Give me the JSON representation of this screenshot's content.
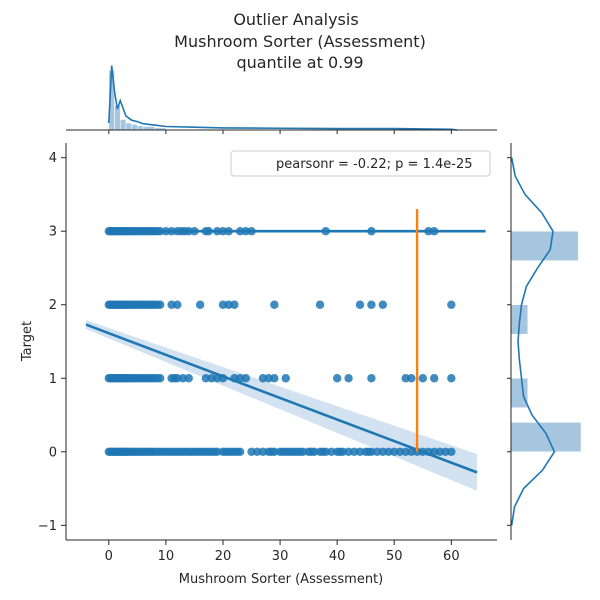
{
  "chart_data": {
    "type": "scatter",
    "title_lines": [
      "Outlier Analysis",
      "Mushroom Sorter (Assessment)",
      "quantile at 0.99"
    ],
    "xlabel": "Mushroom Sorter (Assessment)",
    "ylabel": "Target",
    "xlim": [
      -7.5,
      68
    ],
    "ylim": [
      -1.2,
      4.2
    ],
    "x_ticks": [
      0,
      10,
      20,
      30,
      40,
      50,
      60
    ],
    "y_ticks": [
      -1,
      0,
      1,
      2,
      3,
      4
    ],
    "legend": {
      "text": "pearsonr = -0.22; p = 1.4e-25",
      "position": "top-right"
    },
    "colors": {
      "points": "#1f77b4",
      "quantile_line": "#ff7f0e",
      "ci_band": "#aecbe6",
      "hist_bar": "#a6c6e0"
    },
    "series": [
      {
        "target": 3,
        "x": [
          0,
          0.3,
          0.6,
          0.9,
          1.2,
          1.5,
          1.8,
          2.1,
          2.4,
          2.7,
          3,
          3.3,
          3.6,
          4,
          4.4,
          4.8,
          5.2,
          5.6,
          6,
          6.4,
          6.8,
          7.2,
          7.6,
          8,
          8.5,
          9,
          10,
          11,
          12,
          12.7,
          13.3,
          14,
          15,
          17,
          17.5,
          19,
          20,
          21,
          23,
          24,
          25,
          38,
          46,
          56,
          57
        ]
      },
      {
        "target": 2,
        "x": [
          0,
          0.3,
          0.6,
          0.9,
          1.2,
          1.5,
          1.8,
          2.1,
          2.4,
          2.7,
          3,
          3.3,
          3.6,
          4,
          4.4,
          4.8,
          5.2,
          5.6,
          6,
          6.4,
          6.8,
          7.2,
          7.6,
          8,
          8.5,
          9,
          11,
          12,
          16,
          20,
          21,
          22,
          29,
          37,
          44,
          46,
          48,
          60
        ]
      },
      {
        "target": 1,
        "x": [
          0,
          0.3,
          0.6,
          0.9,
          1.2,
          1.5,
          1.8,
          2.1,
          2.4,
          2.7,
          3,
          3.3,
          3.6,
          4,
          4.4,
          4.8,
          5.2,
          5.6,
          6,
          6.4,
          6.8,
          7.2,
          7.6,
          8,
          8.5,
          9,
          11,
          11.5,
          12,
          13,
          14,
          17,
          18,
          19,
          20,
          22,
          23,
          24,
          27,
          28,
          29,
          31,
          40,
          42,
          46,
          52,
          53,
          55,
          57,
          60
        ]
      },
      {
        "target": 0,
        "x": [
          0,
          0.3,
          0.6,
          0.9,
          1.2,
          1.5,
          1.8,
          2.1,
          2.4,
          2.7,
          3,
          3.3,
          3.6,
          4,
          4.4,
          4.8,
          5.2,
          5.6,
          6,
          6.4,
          6.8,
          7.2,
          7.6,
          8,
          8.5,
          9,
          9.5,
          10,
          10.5,
          11,
          11.5,
          12,
          12.5,
          13,
          13.5,
          14,
          14.5,
          15,
          15.5,
          16,
          16.5,
          17,
          17.5,
          18,
          18.5,
          19,
          20,
          20.5,
          21,
          21.5,
          22,
          22.5,
          23,
          25,
          26,
          27,
          28,
          28.5,
          29,
          30,
          30.5,
          31,
          31.5,
          32,
          32.5,
          33,
          33.5,
          34,
          35,
          35.5,
          36,
          37,
          37.5,
          38,
          39,
          40,
          40.5,
          41,
          42,
          43,
          44,
          45,
          45.5,
          46,
          47,
          48,
          49,
          50,
          51,
          52,
          53,
          54,
          55,
          56,
          57,
          58,
          59,
          60
        ]
      }
    ],
    "regression_lines": [
      {
        "target": 3,
        "x": [
          0,
          66
        ],
        "y": [
          3.0,
          3.0
        ]
      },
      {
        "target": "overall",
        "x": [
          -4,
          64.5
        ],
        "y": [
          1.73,
          -0.28
        ],
        "ci_x": [
          -4,
          64.5
        ],
        "ci_low": [
          1.67,
          -0.53
        ],
        "ci_high": [
          1.79,
          -0.03
        ]
      }
    ],
    "quantile_line": {
      "x": 54,
      "y": [
        0,
        3.3
      ]
    },
    "marginal_x": {
      "x_range": [
        -7.5,
        68
      ],
      "kde_x": [
        0,
        0.5,
        1,
        1.5,
        2,
        3,
        4,
        5,
        6,
        8,
        10,
        15,
        20,
        30,
        40,
        50,
        60,
        61
      ],
      "kde_y": [
        0.1,
        0.92,
        0.55,
        0.3,
        0.42,
        0.2,
        0.14,
        0.12,
        0.09,
        0.07,
        0.05,
        0.04,
        0.03,
        0.025,
        0.02,
        0.02,
        0.01,
        0
      ],
      "hist_bins": [
        0,
        1,
        2,
        3,
        4,
        5,
        6,
        8,
        10
      ],
      "hist_heights": [
        0.85,
        0.35,
        0.15,
        0.1,
        0.08,
        0.06,
        0.05,
        0.03,
        0.02
      ]
    },
    "marginal_y": {
      "bars": [
        {
          "y_low": 2.6,
          "y_high": 3.0,
          "width": 0.96
        },
        {
          "y_low": 1.6,
          "y_high": 2.0,
          "width": 0.24
        },
        {
          "y_low": 0.6,
          "y_high": 1.0,
          "width": 0.24
        },
        {
          "y_low": 0.0,
          "y_high": 0.4,
          "width": 1.0
        }
      ],
      "kde_y": [
        -1,
        -0.75,
        -0.5,
        -0.25,
        0,
        0.25,
        0.5,
        0.75,
        1,
        1.25,
        1.5,
        1.75,
        2,
        2.25,
        2.5,
        2.75,
        3,
        3.25,
        3.5,
        3.75,
        4
      ],
      "kde_v": [
        0.01,
        0.05,
        0.18,
        0.45,
        0.62,
        0.5,
        0.3,
        0.18,
        0.15,
        0.12,
        0.1,
        0.12,
        0.15,
        0.22,
        0.38,
        0.56,
        0.6,
        0.44,
        0.2,
        0.06,
        0.01
      ]
    }
  }
}
